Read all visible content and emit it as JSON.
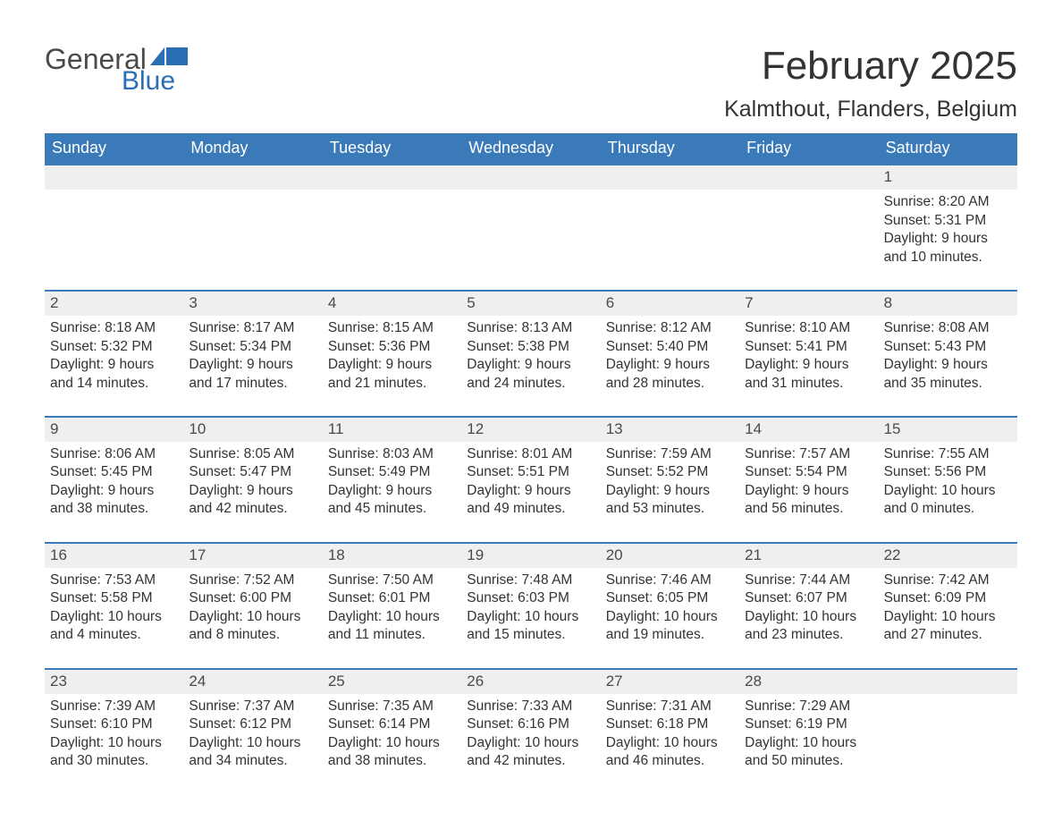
{
  "logo": {
    "word1": "General",
    "word2": "Blue",
    "word1_color": "#4a4a4a",
    "word2_color": "#2a6fb5",
    "flag_color": "#2a6fb5"
  },
  "header": {
    "title": "February 2025",
    "location": "Kalmthout, Flanders, Belgium"
  },
  "colors": {
    "header_bar_bg": "#3a7ab8",
    "header_bar_text": "#ffffff",
    "day_number_bg": "#efefef",
    "week_divider": "#3a7ab8",
    "body_text": "#333333",
    "page_bg": "#ffffff"
  },
  "typography": {
    "title_fontsize": 44,
    "location_fontsize": 25,
    "weekday_fontsize": 18,
    "daynum_fontsize": 17,
    "body_fontsize": 15.5,
    "font_family": "Segoe UI, Arial, sans-serif"
  },
  "layout": {
    "type": "calendar-grid",
    "columns": 7,
    "rows": 5,
    "start_weekday": "Sunday"
  },
  "weekdays": [
    "Sunday",
    "Monday",
    "Tuesday",
    "Wednesday",
    "Thursday",
    "Friday",
    "Saturday"
  ],
  "weeks": [
    [
      {
        "day": "",
        "sunrise": "",
        "sunset": "",
        "daylight": ""
      },
      {
        "day": "",
        "sunrise": "",
        "sunset": "",
        "daylight": ""
      },
      {
        "day": "",
        "sunrise": "",
        "sunset": "",
        "daylight": ""
      },
      {
        "day": "",
        "sunrise": "",
        "sunset": "",
        "daylight": ""
      },
      {
        "day": "",
        "sunrise": "",
        "sunset": "",
        "daylight": ""
      },
      {
        "day": "",
        "sunrise": "",
        "sunset": "",
        "daylight": ""
      },
      {
        "day": "1",
        "sunrise": "Sunrise: 8:20 AM",
        "sunset": "Sunset: 5:31 PM",
        "daylight": "Daylight: 9 hours and 10 minutes."
      }
    ],
    [
      {
        "day": "2",
        "sunrise": "Sunrise: 8:18 AM",
        "sunset": "Sunset: 5:32 PM",
        "daylight": "Daylight: 9 hours and 14 minutes."
      },
      {
        "day": "3",
        "sunrise": "Sunrise: 8:17 AM",
        "sunset": "Sunset: 5:34 PM",
        "daylight": "Daylight: 9 hours and 17 minutes."
      },
      {
        "day": "4",
        "sunrise": "Sunrise: 8:15 AM",
        "sunset": "Sunset: 5:36 PM",
        "daylight": "Daylight: 9 hours and 21 minutes."
      },
      {
        "day": "5",
        "sunrise": "Sunrise: 8:13 AM",
        "sunset": "Sunset: 5:38 PM",
        "daylight": "Daylight: 9 hours and 24 minutes."
      },
      {
        "day": "6",
        "sunrise": "Sunrise: 8:12 AM",
        "sunset": "Sunset: 5:40 PM",
        "daylight": "Daylight: 9 hours and 28 minutes."
      },
      {
        "day": "7",
        "sunrise": "Sunrise: 8:10 AM",
        "sunset": "Sunset: 5:41 PM",
        "daylight": "Daylight: 9 hours and 31 minutes."
      },
      {
        "day": "8",
        "sunrise": "Sunrise: 8:08 AM",
        "sunset": "Sunset: 5:43 PM",
        "daylight": "Daylight: 9 hours and 35 minutes."
      }
    ],
    [
      {
        "day": "9",
        "sunrise": "Sunrise: 8:06 AM",
        "sunset": "Sunset: 5:45 PM",
        "daylight": "Daylight: 9 hours and 38 minutes."
      },
      {
        "day": "10",
        "sunrise": "Sunrise: 8:05 AM",
        "sunset": "Sunset: 5:47 PM",
        "daylight": "Daylight: 9 hours and 42 minutes."
      },
      {
        "day": "11",
        "sunrise": "Sunrise: 8:03 AM",
        "sunset": "Sunset: 5:49 PM",
        "daylight": "Daylight: 9 hours and 45 minutes."
      },
      {
        "day": "12",
        "sunrise": "Sunrise: 8:01 AM",
        "sunset": "Sunset: 5:51 PM",
        "daylight": "Daylight: 9 hours and 49 minutes."
      },
      {
        "day": "13",
        "sunrise": "Sunrise: 7:59 AM",
        "sunset": "Sunset: 5:52 PM",
        "daylight": "Daylight: 9 hours and 53 minutes."
      },
      {
        "day": "14",
        "sunrise": "Sunrise: 7:57 AM",
        "sunset": "Sunset: 5:54 PM",
        "daylight": "Daylight: 9 hours and 56 minutes."
      },
      {
        "day": "15",
        "sunrise": "Sunrise: 7:55 AM",
        "sunset": "Sunset: 5:56 PM",
        "daylight": "Daylight: 10 hours and 0 minutes."
      }
    ],
    [
      {
        "day": "16",
        "sunrise": "Sunrise: 7:53 AM",
        "sunset": "Sunset: 5:58 PM",
        "daylight": "Daylight: 10 hours and 4 minutes."
      },
      {
        "day": "17",
        "sunrise": "Sunrise: 7:52 AM",
        "sunset": "Sunset: 6:00 PM",
        "daylight": "Daylight: 10 hours and 8 minutes."
      },
      {
        "day": "18",
        "sunrise": "Sunrise: 7:50 AM",
        "sunset": "Sunset: 6:01 PM",
        "daylight": "Daylight: 10 hours and 11 minutes."
      },
      {
        "day": "19",
        "sunrise": "Sunrise: 7:48 AM",
        "sunset": "Sunset: 6:03 PM",
        "daylight": "Daylight: 10 hours and 15 minutes."
      },
      {
        "day": "20",
        "sunrise": "Sunrise: 7:46 AM",
        "sunset": "Sunset: 6:05 PM",
        "daylight": "Daylight: 10 hours and 19 minutes."
      },
      {
        "day": "21",
        "sunrise": "Sunrise: 7:44 AM",
        "sunset": "Sunset: 6:07 PM",
        "daylight": "Daylight: 10 hours and 23 minutes."
      },
      {
        "day": "22",
        "sunrise": "Sunrise: 7:42 AM",
        "sunset": "Sunset: 6:09 PM",
        "daylight": "Daylight: 10 hours and 27 minutes."
      }
    ],
    [
      {
        "day": "23",
        "sunrise": "Sunrise: 7:39 AM",
        "sunset": "Sunset: 6:10 PM",
        "daylight": "Daylight: 10 hours and 30 minutes."
      },
      {
        "day": "24",
        "sunrise": "Sunrise: 7:37 AM",
        "sunset": "Sunset: 6:12 PM",
        "daylight": "Daylight: 10 hours and 34 minutes."
      },
      {
        "day": "25",
        "sunrise": "Sunrise: 7:35 AM",
        "sunset": "Sunset: 6:14 PM",
        "daylight": "Daylight: 10 hours and 38 minutes."
      },
      {
        "day": "26",
        "sunrise": "Sunrise: 7:33 AM",
        "sunset": "Sunset: 6:16 PM",
        "daylight": "Daylight: 10 hours and 42 minutes."
      },
      {
        "day": "27",
        "sunrise": "Sunrise: 7:31 AM",
        "sunset": "Sunset: 6:18 PM",
        "daylight": "Daylight: 10 hours and 46 minutes."
      },
      {
        "day": "28",
        "sunrise": "Sunrise: 7:29 AM",
        "sunset": "Sunset: 6:19 PM",
        "daylight": "Daylight: 10 hours and 50 minutes."
      },
      {
        "day": "",
        "sunrise": "",
        "sunset": "",
        "daylight": ""
      }
    ]
  ]
}
